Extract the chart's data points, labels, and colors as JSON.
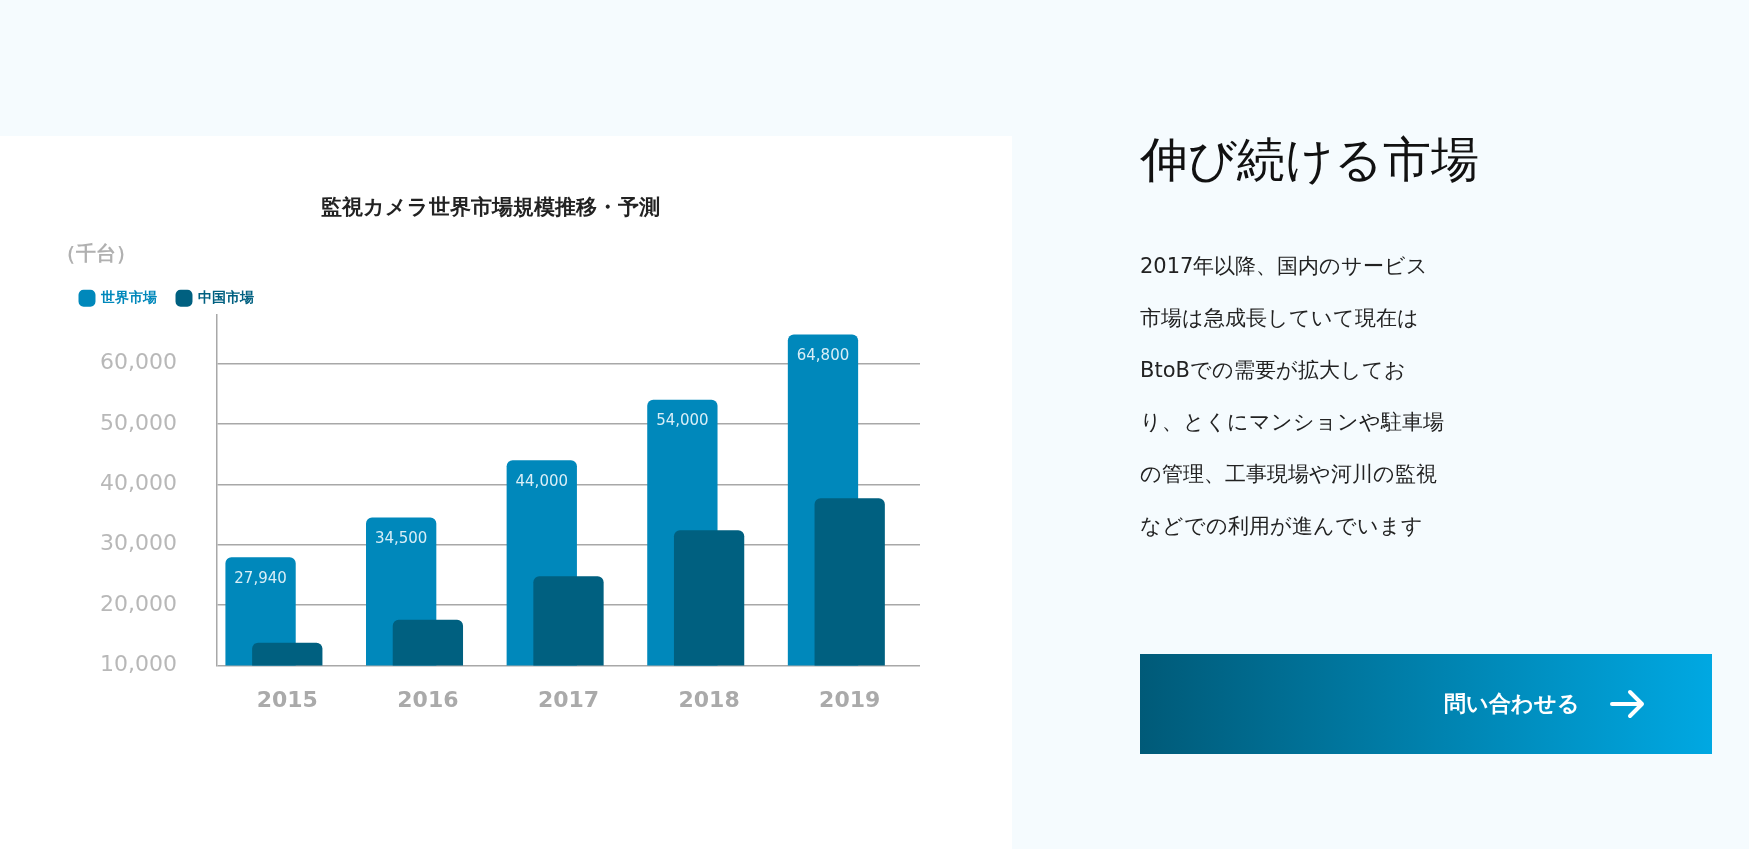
{
  "chart_data": {
    "type": "bar",
    "title": "監視カメラ世界市場規模推移・予測",
    "ylabel": "（千台）",
    "categories": [
      "2015",
      "2016",
      "2017",
      "2018",
      "2019"
    ],
    "series": [
      {
        "name": "世界市場",
        "color": "#0088bb",
        "values": [
          27940,
          34500,
          44000,
          54000,
          64800
        ],
        "value_labels": [
          "27,940",
          "34,500",
          "44,000",
          "54,000",
          "64,800"
        ]
      },
      {
        "name": "中国市場",
        "color": "#006080",
        "values": [
          13800,
          17600,
          24800,
          32400,
          37700
        ]
      }
    ],
    "ylim": [
      10000,
      68000
    ],
    "yticks": [
      {
        "value": 10000,
        "label": "10,000"
      },
      {
        "value": 20000,
        "label": "20,000"
      },
      {
        "value": 30000,
        "label": "30,000"
      },
      {
        "value": 40000,
        "label": "40,000"
      },
      {
        "value": 50000,
        "label": "50,000"
      },
      {
        "value": 60000,
        "label": "60,000"
      }
    ],
    "grid": "y",
    "legend": "top left",
    "annotations": [
      "伸び続ける市場",
      "2017年以降、国内のサービス市場は急成長していて現在はBtoBでの需要が拡大しており、とくにマンションや駐車場の管理、工事現場や河川の監視などでの利用が進んでいます",
      "問い合わせる"
    ]
  }
}
